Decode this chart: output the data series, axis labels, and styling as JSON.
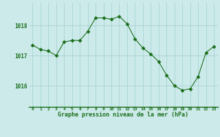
{
  "x": [
    0,
    1,
    2,
    3,
    4,
    5,
    6,
    7,
    8,
    9,
    10,
    11,
    12,
    13,
    14,
    15,
    16,
    17,
    18,
    19,
    20,
    21,
    22,
    23
  ],
  "y": [
    1017.35,
    1017.2,
    1017.15,
    1017.0,
    1017.45,
    1017.5,
    1017.5,
    1017.8,
    1018.25,
    1018.25,
    1018.2,
    1018.3,
    1018.05,
    1017.55,
    1017.25,
    1017.05,
    1016.8,
    1016.35,
    1016.0,
    1015.85,
    1015.9,
    1016.3,
    1017.1,
    1017.3
  ],
  "line_color": "#1a6e1a",
  "marker": "D",
  "marker_size": 2.5,
  "bg_color": "#cceaea",
  "grid_color": "#a0cece",
  "xlabel": "Graphe pression niveau de la mer (hPa)",
  "xlabel_color": "#1a6e1a",
  "tick_color": "#1a6e1a",
  "yticks": [
    1016,
    1017,
    1018
  ],
  "ylim": [
    1015.3,
    1018.75
  ],
  "xlim": [
    -0.5,
    23.5
  ],
  "xtick_labels": [
    "0",
    "1",
    "2",
    "3",
    "4",
    "5",
    "6",
    "7",
    "8",
    "9",
    "10",
    "11",
    "12",
    "13",
    "14",
    "15",
    "16",
    "17",
    "18",
    "19",
    "20",
    "21",
    "22",
    "23"
  ]
}
